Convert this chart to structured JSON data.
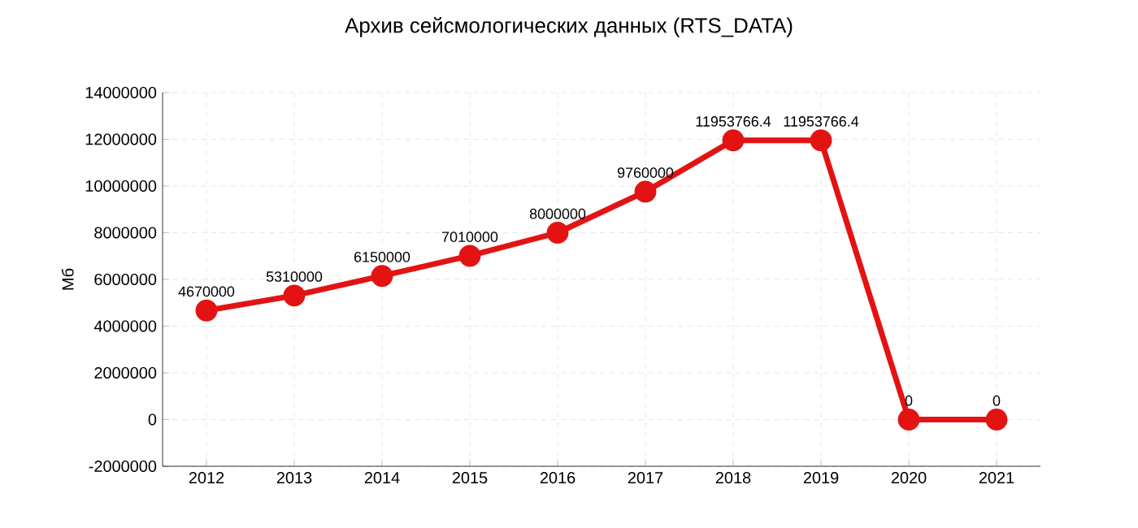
{
  "chart_data": {
    "type": "line",
    "title": "Архив сейсмологических данных (RTS_DATA)",
    "ylabel": "Мб",
    "categories": [
      "2012",
      "2013",
      "2014",
      "2015",
      "2016",
      "2017",
      "2018",
      "2019",
      "2020",
      "2021"
    ],
    "values": [
      4670000,
      5310000,
      6150000,
      7010000,
      8000000,
      9760000,
      11953766.4,
      11953766.4,
      0,
      0
    ],
    "color": "#e31313",
    "ylim": [
      -2000000,
      14000000
    ],
    "yticks": [
      -2000000,
      0,
      2000000,
      4000000,
      6000000,
      8000000,
      10000000,
      12000000,
      14000000
    ],
    "grid": true,
    "marker": "circle",
    "line_style": "solid",
    "data_labels": true
  }
}
